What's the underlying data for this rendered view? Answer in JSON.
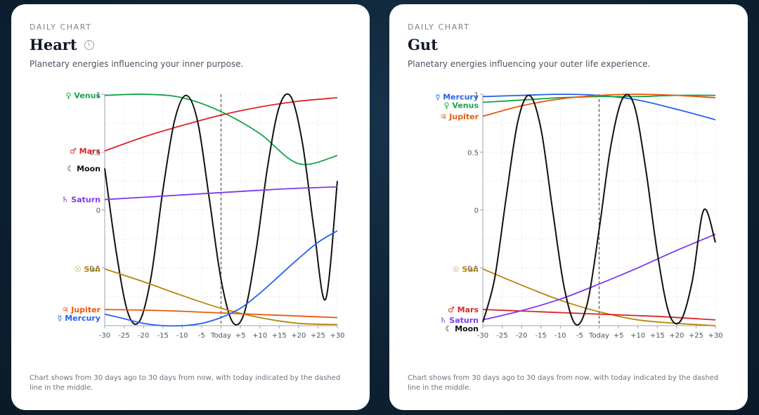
{
  "cards": [
    {
      "eyebrow": "DAILY CHART",
      "title": "Heart",
      "has_info_icon": true,
      "subtitle": "Planetary energies influencing your inner purpose.",
      "footnote": "Chart shows from 30 days ago to 30 days from now, with today indicated by the dashed line in the middle."
    },
    {
      "eyebrow": "DAILY CHART",
      "title": "Gut",
      "has_info_icon": false,
      "subtitle": "Planetary energies influencing your outer life experience.",
      "footnote": "Chart shows from 30 days ago to 30 days from now, with today indicated by the dashed line in the middle."
    }
  ],
  "chart_data": [
    {
      "type": "line",
      "x_ticks": [
        "-30",
        "-25",
        "-20",
        "-15",
        "-10",
        "-5",
        "Today",
        "+5",
        "+10",
        "+15",
        "+20",
        "+25",
        "+30"
      ],
      "x_range": [
        -30,
        30
      ],
      "y_range": [
        -1,
        1
      ],
      "y_ticks": [
        "-0.5",
        "0",
        "0.5",
        "1"
      ],
      "y_tick_values": [
        -0.5,
        0,
        0.5,
        1
      ],
      "today_marker": 0,
      "series": [
        {
          "name": "Venus",
          "symbol": "♀",
          "color": "#16a34a",
          "x": [
            -30,
            -20,
            -10,
            0,
            10,
            20,
            30
          ],
          "y": [
            0.99,
            1.0,
            0.97,
            0.85,
            0.66,
            0.4,
            0.47
          ]
        },
        {
          "name": "Mars",
          "symbol": "♂",
          "color": "#dc2626",
          "x": [
            -30,
            -20,
            -10,
            0,
            10,
            20,
            30
          ],
          "y": [
            0.51,
            0.63,
            0.73,
            0.82,
            0.89,
            0.94,
            0.97
          ]
        },
        {
          "name": "Moon",
          "symbol": "☾",
          "color": "#111111",
          "x": [
            -30,
            -27,
            -24,
            -21,
            -18,
            -15,
            -12,
            -9,
            -6,
            -3,
            0,
            3,
            6,
            9,
            12,
            15,
            18,
            21,
            24,
            27,
            30
          ],
          "y": [
            0.36,
            -0.37,
            -0.89,
            -0.96,
            -0.57,
            0.17,
            0.77,
            0.99,
            0.76,
            0.09,
            -0.6,
            -0.97,
            -0.89,
            -0.36,
            0.37,
            0.89,
            0.98,
            0.58,
            -0.17,
            -0.77,
            0.25
          ]
        },
        {
          "name": "Saturn",
          "symbol": "♄",
          "color": "#7c3aed",
          "x": [
            -30,
            -15,
            0,
            15,
            30
          ],
          "y": [
            0.09,
            0.12,
            0.15,
            0.18,
            0.2
          ]
        },
        {
          "name": "Sun",
          "symbol": "☉",
          "color": "#b8860b",
          "x": [
            -30,
            -20,
            -10,
            0,
            10,
            20,
            30
          ],
          "y": [
            -0.51,
            -0.62,
            -0.74,
            -0.85,
            -0.93,
            -0.98,
            -0.99
          ]
        },
        {
          "name": "Jupiter",
          "symbol": "♃",
          "color": "#ea580c",
          "x": [
            -30,
            -15,
            0,
            15,
            30
          ],
          "y": [
            -0.86,
            -0.87,
            -0.89,
            -0.91,
            -0.93
          ]
        },
        {
          "name": "Mercury",
          "symbol": "☿",
          "color": "#2563eb",
          "x": [
            -30,
            -25,
            -20,
            -15,
            -10,
            -5,
            0,
            5,
            10,
            15,
            20,
            25,
            30
          ],
          "y": [
            -0.9,
            -0.94,
            -0.98,
            -1.0,
            -1.0,
            -0.98,
            -0.93,
            -0.85,
            -0.72,
            -0.57,
            -0.42,
            -0.28,
            -0.18
          ]
        }
      ],
      "labels_order": [
        "Venus",
        "Mars",
        "Moon",
        "Saturn",
        "Sun",
        "Jupiter",
        "Mercury"
      ]
    },
    {
      "type": "line",
      "x_ticks": [
        "-30",
        "-25",
        "-20",
        "-15",
        "-10",
        "-5",
        "Today",
        "+5",
        "+10",
        "+15",
        "+20",
        "+25",
        "+30"
      ],
      "x_range": [
        -30,
        30
      ],
      "y_range": [
        -1,
        1
      ],
      "y_ticks": [
        "-0.5",
        "0",
        "0.5",
        "1"
      ],
      "y_tick_values": [
        -0.5,
        0,
        0.5,
        1
      ],
      "today_marker": 0,
      "series": [
        {
          "name": "Mercury",
          "symbol": "☿",
          "color": "#2563eb",
          "x": [
            -30,
            -20,
            -10,
            0,
            10,
            20,
            30
          ],
          "y": [
            0.98,
            0.99,
            1.0,
            0.99,
            0.95,
            0.87,
            0.78
          ]
        },
        {
          "name": "Venus",
          "symbol": "♀",
          "color": "#16a34a",
          "x": [
            -30,
            -20,
            -10,
            0,
            10,
            20,
            30
          ],
          "y": [
            0.93,
            0.95,
            0.97,
            0.98,
            0.98,
            0.99,
            0.99
          ]
        },
        {
          "name": "Jupiter",
          "symbol": "♃",
          "color": "#ea580c",
          "x": [
            -30,
            -20,
            -10,
            0,
            10,
            20,
            30
          ],
          "y": [
            0.81,
            0.9,
            0.96,
            0.99,
            1.0,
            0.99,
            0.97
          ]
        },
        {
          "name": "Sun",
          "symbol": "☉",
          "color": "#b8860b",
          "x": [
            -30,
            -20,
            -10,
            0,
            10,
            20,
            30
          ],
          "y": [
            -0.51,
            -0.65,
            -0.78,
            -0.88,
            -0.95,
            -0.98,
            -1.0
          ]
        },
        {
          "name": "Mars",
          "symbol": "♂",
          "color": "#dc2626",
          "x": [
            -30,
            -15,
            0,
            15,
            30
          ],
          "y": [
            -0.86,
            -0.88,
            -0.9,
            -0.92,
            -0.95
          ]
        },
        {
          "name": "Saturn",
          "symbol": "♄",
          "color": "#7c3aed",
          "x": [
            -30,
            -20,
            -10,
            0,
            10,
            20,
            30
          ],
          "y": [
            -0.95,
            -0.87,
            -0.77,
            -0.64,
            -0.5,
            -0.35,
            -0.21
          ]
        },
        {
          "name": "Moon",
          "symbol": "☾",
          "color": "#111111",
          "x": [
            -30,
            -27,
            -24,
            -21,
            -18,
            -15,
            -12,
            -9,
            -6,
            -3,
            0,
            3,
            6,
            9,
            12,
            15,
            18,
            21,
            24,
            27,
            30
          ],
          "y": [
            -0.97,
            -0.6,
            0.1,
            0.76,
            0.99,
            0.7,
            0.0,
            -0.67,
            -0.99,
            -0.8,
            -0.17,
            0.55,
            0.96,
            0.91,
            0.36,
            -0.37,
            -0.89,
            -0.96,
            -0.62,
            0.0,
            -0.28
          ]
        }
      ],
      "labels_order": [
        "Mercury",
        "Venus",
        "Jupiter",
        "Sun",
        "Mars",
        "Saturn",
        "Moon"
      ]
    }
  ]
}
